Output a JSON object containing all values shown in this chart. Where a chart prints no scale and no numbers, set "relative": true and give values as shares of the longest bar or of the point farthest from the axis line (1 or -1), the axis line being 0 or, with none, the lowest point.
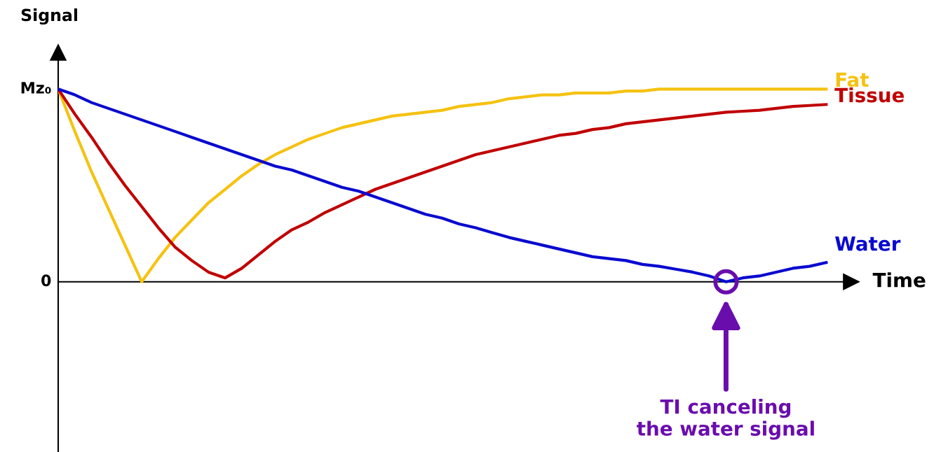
{
  "chart_data": {
    "type": "line",
    "xlabel": "Time",
    "ylabel": "Signal",
    "categories": [
      null,
      null,
      null,
      null,
      null,
      null,
      null,
      null,
      null,
      null,
      null,
      null,
      null,
      null,
      null,
      null,
      null,
      null,
      null,
      null,
      null,
      null,
      null,
      null,
      null,
      null,
      null,
      null,
      null,
      null,
      null,
      null,
      null,
      null,
      null,
      null,
      null,
      null,
      null,
      null,
      null,
      null,
      null,
      null,
      null,
      null,
      null
    ],
    "series": [
      {
        "name": "Fat",
        "color": "#f5c211",
        "values": [
          1.0,
          0.78,
          0.57,
          0.38,
          0.19,
          0,
          0.12,
          0.23,
          0.32,
          0.41,
          0.48,
          0.55,
          0.61,
          0.66,
          0.7,
          0.74,
          0.77,
          0.8,
          0.82,
          0.84,
          0.86,
          0.87,
          0.88,
          0.89,
          0.91,
          0.92,
          0.93,
          0.95,
          0.96,
          0.97,
          0.97,
          0.98,
          0.98,
          0.98,
          0.99,
          0.99,
          1.0,
          1.0,
          1.0,
          1.0,
          1.0,
          1.0,
          1.0,
          1.0,
          1.0,
          1.0,
          1.0
        ]
      },
      {
        "name": "Tissue",
        "color": "#c00000",
        "values": [
          1.0,
          0.87,
          0.75,
          0.62,
          0.5,
          0.39,
          0.28,
          0.18,
          0.11,
          0.05,
          0.02,
          0.07,
          0.14,
          0.21,
          0.27,
          0.31,
          0.36,
          0.4,
          0.44,
          0.48,
          0.51,
          0.54,
          0.57,
          0.6,
          0.63,
          0.66,
          0.68,
          0.7,
          0.72,
          0.74,
          0.76,
          0.77,
          0.79,
          0.8,
          0.82,
          0.83,
          0.84,
          0.85,
          0.86,
          0.87,
          0.88,
          0.885,
          0.89,
          0.9,
          0.91,
          0.915,
          0.92
        ]
      },
      {
        "name": "Water",
        "color": "#0a0ad0",
        "values": [
          1.0,
          0.97,
          0.93,
          0.9,
          0.87,
          0.84,
          0.81,
          0.78,
          0.75,
          0.72,
          0.69,
          0.66,
          0.63,
          0.6,
          0.58,
          0.55,
          0.52,
          0.49,
          0.47,
          0.44,
          0.41,
          0.38,
          0.35,
          0.33,
          0.3,
          0.28,
          0.255,
          0.23,
          0.21,
          0.19,
          0.17,
          0.15,
          0.13,
          0.12,
          0.11,
          0.09,
          0.08,
          0.065,
          0.05,
          0.03,
          0,
          0.02,
          0.03,
          0.05,
          0.07,
          0.08,
          0.1
        ]
      }
    ],
    "relative": true,
    "grid": false,
    "legend": false,
    "marker": "none",
    "line_style": "solid",
    "annotations": [
      "TI canceling\nthe water signal",
      "Mz₀",
      "0"
    ]
  }
}
